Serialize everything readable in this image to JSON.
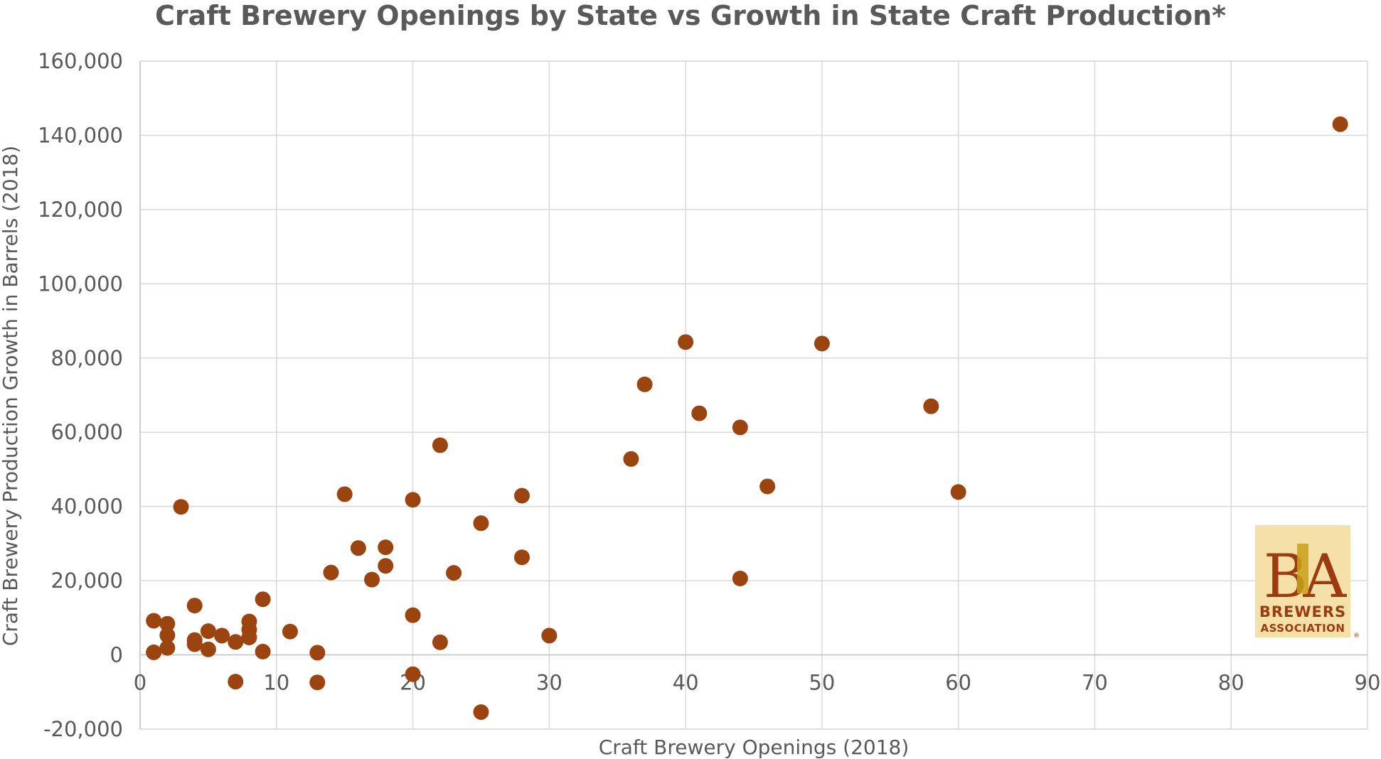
{
  "chart_data": {
    "type": "scatter",
    "title": "Craft Brewery Openings by State vs Growth in State Craft Production*",
    "xlabel": "Craft Brewery Openings (2018)",
    "ylabel": "Craft Brewery Production Growth in Barrels (2018)",
    "xlim": [
      0,
      90
    ],
    "ylim": [
      -20000,
      160000
    ],
    "x_ticks": [
      "0",
      "10",
      "20",
      "30",
      "40",
      "50",
      "60",
      "70",
      "80",
      "90"
    ],
    "y_ticks": [
      "160,000",
      "140,000",
      "120,000",
      "100,000",
      "80,000",
      "60,000",
      "40,000",
      "20,000",
      "0",
      "-20,000"
    ],
    "grid": true,
    "marker_color": "#9c4410",
    "series": [
      {
        "points": [
          [
            1,
            9200
          ],
          [
            1,
            700
          ],
          [
            2,
            8400
          ],
          [
            2,
            5300
          ],
          [
            2,
            1900
          ],
          [
            3,
            39900
          ],
          [
            4,
            13300
          ],
          [
            4,
            4000
          ],
          [
            4,
            2900
          ],
          [
            5,
            6400
          ],
          [
            5,
            1500
          ],
          [
            6,
            5200
          ],
          [
            7,
            3500
          ],
          [
            7,
            -7200
          ],
          [
            8,
            9000
          ],
          [
            8,
            6800
          ],
          [
            8,
            4700
          ],
          [
            9,
            15000
          ],
          [
            9,
            900
          ],
          [
            11,
            6300
          ],
          [
            13,
            600
          ],
          [
            13,
            -7400
          ],
          [
            14,
            22200
          ],
          [
            15,
            43300
          ],
          [
            16,
            28800
          ],
          [
            17,
            20300
          ],
          [
            18,
            29000
          ],
          [
            18,
            24000
          ],
          [
            20,
            41800
          ],
          [
            20,
            10700
          ],
          [
            20,
            -5200
          ],
          [
            22,
            56500
          ],
          [
            22,
            3400
          ],
          [
            23,
            22100
          ],
          [
            25,
            35500
          ],
          [
            25,
            -15400
          ],
          [
            28,
            42900
          ],
          [
            28,
            26300
          ],
          [
            30,
            5200
          ],
          [
            36,
            52800
          ],
          [
            37,
            72900
          ],
          [
            40,
            84300
          ],
          [
            41,
            65100
          ],
          [
            44,
            61300
          ],
          [
            44,
            20600
          ],
          [
            46,
            45400
          ],
          [
            50,
            83900
          ],
          [
            58,
            67000
          ],
          [
            60,
            43900
          ],
          [
            88,
            143000
          ]
        ]
      }
    ]
  },
  "logo": {
    "monogram": "BA",
    "line1": "BREWERS",
    "line2": "ASSOCIATION",
    "registered": "®",
    "bg_color": "#f5e0a8",
    "red_color": "#9c3a12",
    "gold_color": "#c8a018"
  }
}
